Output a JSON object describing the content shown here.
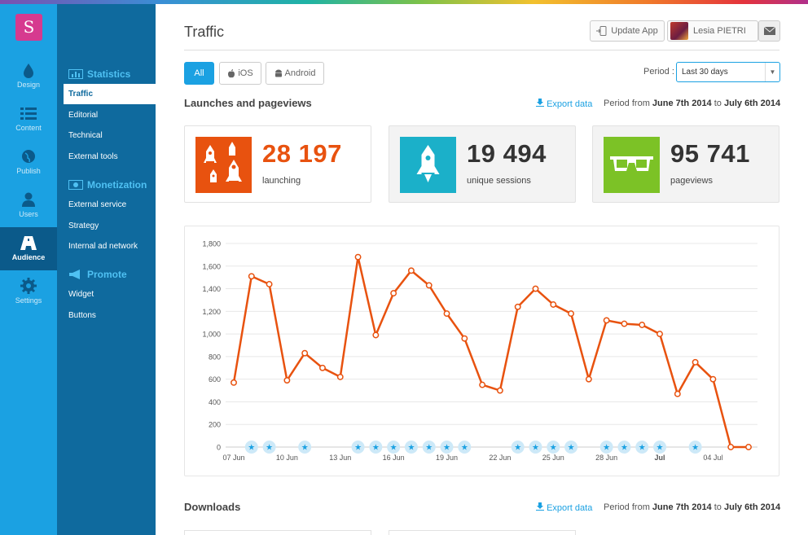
{
  "app": {
    "logo_letter": "S",
    "nav": [
      {
        "label": "Design",
        "icon": "drop-icon"
      },
      {
        "label": "Content",
        "icon": "list-icon"
      },
      {
        "label": "Publish",
        "icon": "globe-icon"
      },
      {
        "label": "Users",
        "icon": "user-icon"
      },
      {
        "label": "Audience",
        "icon": "road-icon",
        "active": true
      },
      {
        "label": "Settings",
        "icon": "gear-icon"
      }
    ]
  },
  "subnav": {
    "statistics": {
      "title": "Statistics",
      "items": [
        "Traffic",
        "Editorial",
        "Technical",
        "External tools"
      ]
    },
    "monetization": {
      "title": "Monetization",
      "items": [
        "External service",
        "Strategy",
        "Internal ad network"
      ]
    },
    "promote": {
      "title": "Promote",
      "items": [
        "Widget",
        "Buttons"
      ]
    }
  },
  "header": {
    "title": "Traffic",
    "update_button": "Update App",
    "user_name": "Lesia PIETRI"
  },
  "filters": {
    "platforms": [
      "All",
      "iOS",
      "Android"
    ],
    "period_label": "Period :",
    "period_value": "Last 30 days"
  },
  "launches": {
    "title": "Launches and pageviews",
    "export": "Export data",
    "period_prefix": "Period from",
    "period_from": "June 7th 2014",
    "period_to_word": "to",
    "period_to": "July 6th 2014",
    "cards": [
      {
        "value": "28 197",
        "label": "launching",
        "color": "#e8520f",
        "icon": "rockets-icon"
      },
      {
        "value": "19 494",
        "label": "unique sessions",
        "color": "#1bb0c9",
        "icon": "rocket-icon"
      },
      {
        "value": "95 741",
        "label": "pageviews",
        "color": "#7cc226",
        "icon": "glasses-icon"
      }
    ]
  },
  "downloads": {
    "title": "Downloads",
    "export": "Export data",
    "period_prefix": "Period from",
    "period_from": "June 7th 2014",
    "period_to_word": "to",
    "period_to": "July 6th 2014"
  },
  "chart_data": {
    "type": "line",
    "ylim": [
      0,
      1800
    ],
    "yticks": [
      0,
      200,
      400,
      600,
      800,
      1000,
      1200,
      1400,
      1600,
      1800
    ],
    "ytick_labels": [
      "0",
      "200",
      "400",
      "600",
      "800",
      "1,000",
      "1,200",
      "1,400",
      "1,600",
      "1,800"
    ],
    "xtick_labels": [
      "07 Jun",
      "10 Jun",
      "13 Jun",
      "16 Jun",
      "19 Jun",
      "22 Jun",
      "25 Jun",
      "28 Jun",
      "Jul",
      "04 Jul"
    ],
    "xtick_days": [
      0,
      3,
      6,
      9,
      12,
      15,
      18,
      21,
      24,
      27
    ],
    "x_dates": [
      "07 Jun",
      "08 Jun",
      "09 Jun",
      "10 Jun",
      "11 Jun",
      "12 Jun",
      "13 Jun",
      "14 Jun",
      "15 Jun",
      "16 Jun",
      "17 Jun",
      "18 Jun",
      "19 Jun",
      "20 Jun",
      "21 Jun",
      "22 Jun",
      "23 Jun",
      "24 Jun",
      "25 Jun",
      "26 Jun",
      "27 Jun",
      "28 Jun",
      "29 Jun",
      "30 Jun",
      "01 Jul",
      "02 Jul",
      "03 Jul",
      "04 Jul",
      "05 Jul",
      "06 Jul"
    ],
    "series": [
      {
        "color": "#e8520f",
        "values": [
          570,
          1510,
          1440,
          590,
          830,
          700,
          620,
          1680,
          990,
          1360,
          1560,
          1430,
          1180,
          960,
          550,
          500,
          1240,
          1400,
          1260,
          1180,
          600,
          1120,
          1090,
          1080,
          1000,
          470,
          750,
          600,
          0,
          0
        ]
      }
    ],
    "star_markers": [
      "08 Jun",
      "09 Jun",
      "11 Jun",
      "14 Jun",
      "15 Jun",
      "16 Jun",
      "17 Jun",
      "18 Jun",
      "19 Jun",
      "20 Jun",
      "23 Jun",
      "24 Jun",
      "25 Jun",
      "26 Jun",
      "28 Jun",
      "29 Jun",
      "30 Jun",
      "01 Jul",
      "03 Jul"
    ],
    "star_color": "#1ba1e2",
    "grid": true
  }
}
